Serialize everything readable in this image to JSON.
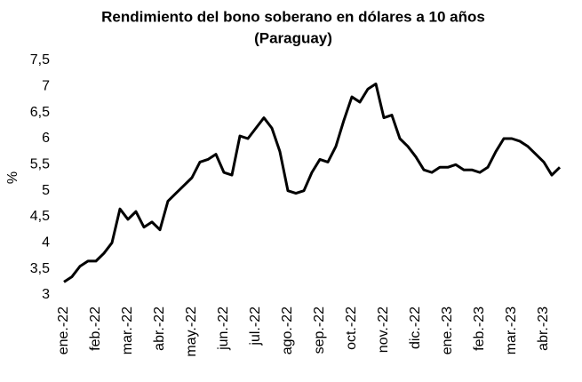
{
  "chart_data": {
    "type": "line",
    "title": "Rendimiento del bono soberano en dólares a 10 años",
    "subtitle": "(Paraguay)",
    "y_label": "%",
    "categories": [
      "ene.-22",
      null,
      null,
      null,
      "feb.-22",
      null,
      null,
      null,
      "mar.-22",
      null,
      null,
      null,
      "abr.-22",
      null,
      null,
      null,
      "may.-22",
      null,
      null,
      null,
      "jun.-22",
      null,
      null,
      null,
      "jul.-22",
      null,
      null,
      null,
      "ago.-22",
      null,
      null,
      null,
      "sep.-22",
      null,
      null,
      null,
      "oct.-22",
      null,
      null,
      null,
      "nov.-22",
      null,
      null,
      null,
      "dic.-22",
      null,
      null,
      null,
      "ene.-23",
      null,
      null,
      null,
      "feb.-23",
      null,
      null,
      null,
      "mar.-23",
      null,
      null,
      null,
      "abr.-23",
      null,
      null
    ],
    "series": [
      {
        "name": "Paraguay",
        "color": "#000000",
        "values": [
          3.25,
          3.35,
          3.55,
          3.65,
          3.65,
          3.8,
          4.0,
          4.65,
          4.45,
          4.6,
          4.3,
          4.4,
          4.25,
          4.8,
          4.95,
          5.1,
          5.25,
          5.55,
          5.6,
          5.7,
          5.35,
          5.3,
          6.05,
          6.0,
          6.2,
          6.4,
          6.2,
          5.75,
          5.0,
          4.95,
          5.0,
          5.35,
          5.6,
          5.55,
          5.85,
          6.35,
          6.8,
          6.7,
          6.95,
          7.05,
          6.4,
          6.45,
          6.0,
          5.85,
          5.65,
          5.4,
          5.35,
          5.45,
          5.45,
          5.5,
          5.4,
          5.4,
          5.35,
          5.45,
          5.75,
          6.0,
          6.0,
          5.95,
          5.85,
          5.7,
          5.55,
          5.3,
          5.45
        ]
      }
    ],
    "ylim": [
      3,
      7.5
    ],
    "yticks": [
      3,
      {
        "value": 3.5,
        "label": "3,5"
      },
      4,
      {
        "value": 4.5,
        "label": "4,5"
      },
      5,
      {
        "value": 5.5,
        "label": "5,5"
      },
      6,
      {
        "value": 6.5,
        "label": "6,5"
      },
      7,
      {
        "value": 7.5,
        "label": "7,5"
      }
    ],
    "grid": false
  }
}
